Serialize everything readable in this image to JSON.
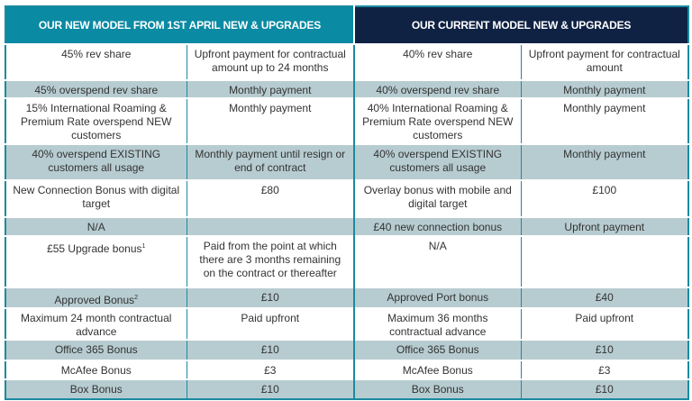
{
  "headers": {
    "new_model": "OUR NEW MODEL FROM 1ST APRIL NEW & UPGRADES",
    "current_model": "OUR CURRENT MODEL NEW & UPGRADES"
  },
  "colors": {
    "new_header": "#0a8aa3",
    "current_header": "#0f2244",
    "shaded_row": "#b7ccd1",
    "border": "#1b8aa0"
  },
  "rows": [
    {
      "new_item": "45% rev share",
      "new_payment": "Upfront payment for contractual amount up to 24 months",
      "cur_item": "40% rev share",
      "cur_payment": "Upfront payment for contractual amount",
      "shaded": false
    },
    {
      "new_item": "45% overspend rev share",
      "new_payment": "Monthly payment",
      "cur_item": "40% overspend rev share",
      "cur_payment": "Monthly payment",
      "shaded": true
    },
    {
      "new_item": "15% International Roaming & Premium Rate overspend NEW customers",
      "new_payment": "Monthly payment",
      "cur_item": "40% International Roaming & Premium Rate overspend NEW customers",
      "cur_payment": "Monthly payment",
      "shaded": false
    },
    {
      "new_item": "40% overspend EXISTING customers all usage",
      "new_payment": "Monthly payment until resign or end of contract",
      "cur_item": "40% overspend EXISTING customers all usage",
      "cur_payment": "Monthly payment",
      "shaded": true
    },
    {
      "new_item": "New Connection Bonus with digital target",
      "new_payment": "£80",
      "cur_item": "Overlay bonus with mobile and digital target",
      "cur_payment": "£100",
      "shaded": false
    },
    {
      "new_item": "N/A",
      "new_payment": "",
      "cur_item": "£40 new connection bonus",
      "cur_payment": "Upfront payment",
      "shaded": true
    },
    {
      "new_item": "£55 Upgrade bonus",
      "new_item_sup": "1",
      "new_payment": "Paid from the point at which there are 3 months remaining on the contract or thereafter",
      "cur_item": "N/A",
      "cur_payment": "",
      "shaded": false
    },
    {
      "new_item": "Approved Bonus",
      "new_item_sup": "2",
      "new_payment": "£10",
      "cur_item": "Approved Port bonus",
      "cur_payment": "£40",
      "shaded": true
    },
    {
      "new_item": "Maximum 24 month contractual advance",
      "new_payment": "Paid upfront",
      "cur_item": "Maximum 36 months contractual advance",
      "cur_payment": "Paid upfront",
      "shaded": false
    },
    {
      "new_item": "Office 365 Bonus",
      "new_payment": "£10",
      "cur_item": "Office 365 Bonus",
      "cur_payment": "£10",
      "shaded": true
    },
    {
      "new_item": "McAfee Bonus",
      "new_payment": "£3",
      "cur_item": "McAfee Bonus",
      "cur_payment": "£3",
      "shaded": false
    },
    {
      "new_item": "Box Bonus",
      "new_payment": "£10",
      "cur_item": "Box Bonus",
      "cur_payment": "£10",
      "shaded": true
    }
  ]
}
